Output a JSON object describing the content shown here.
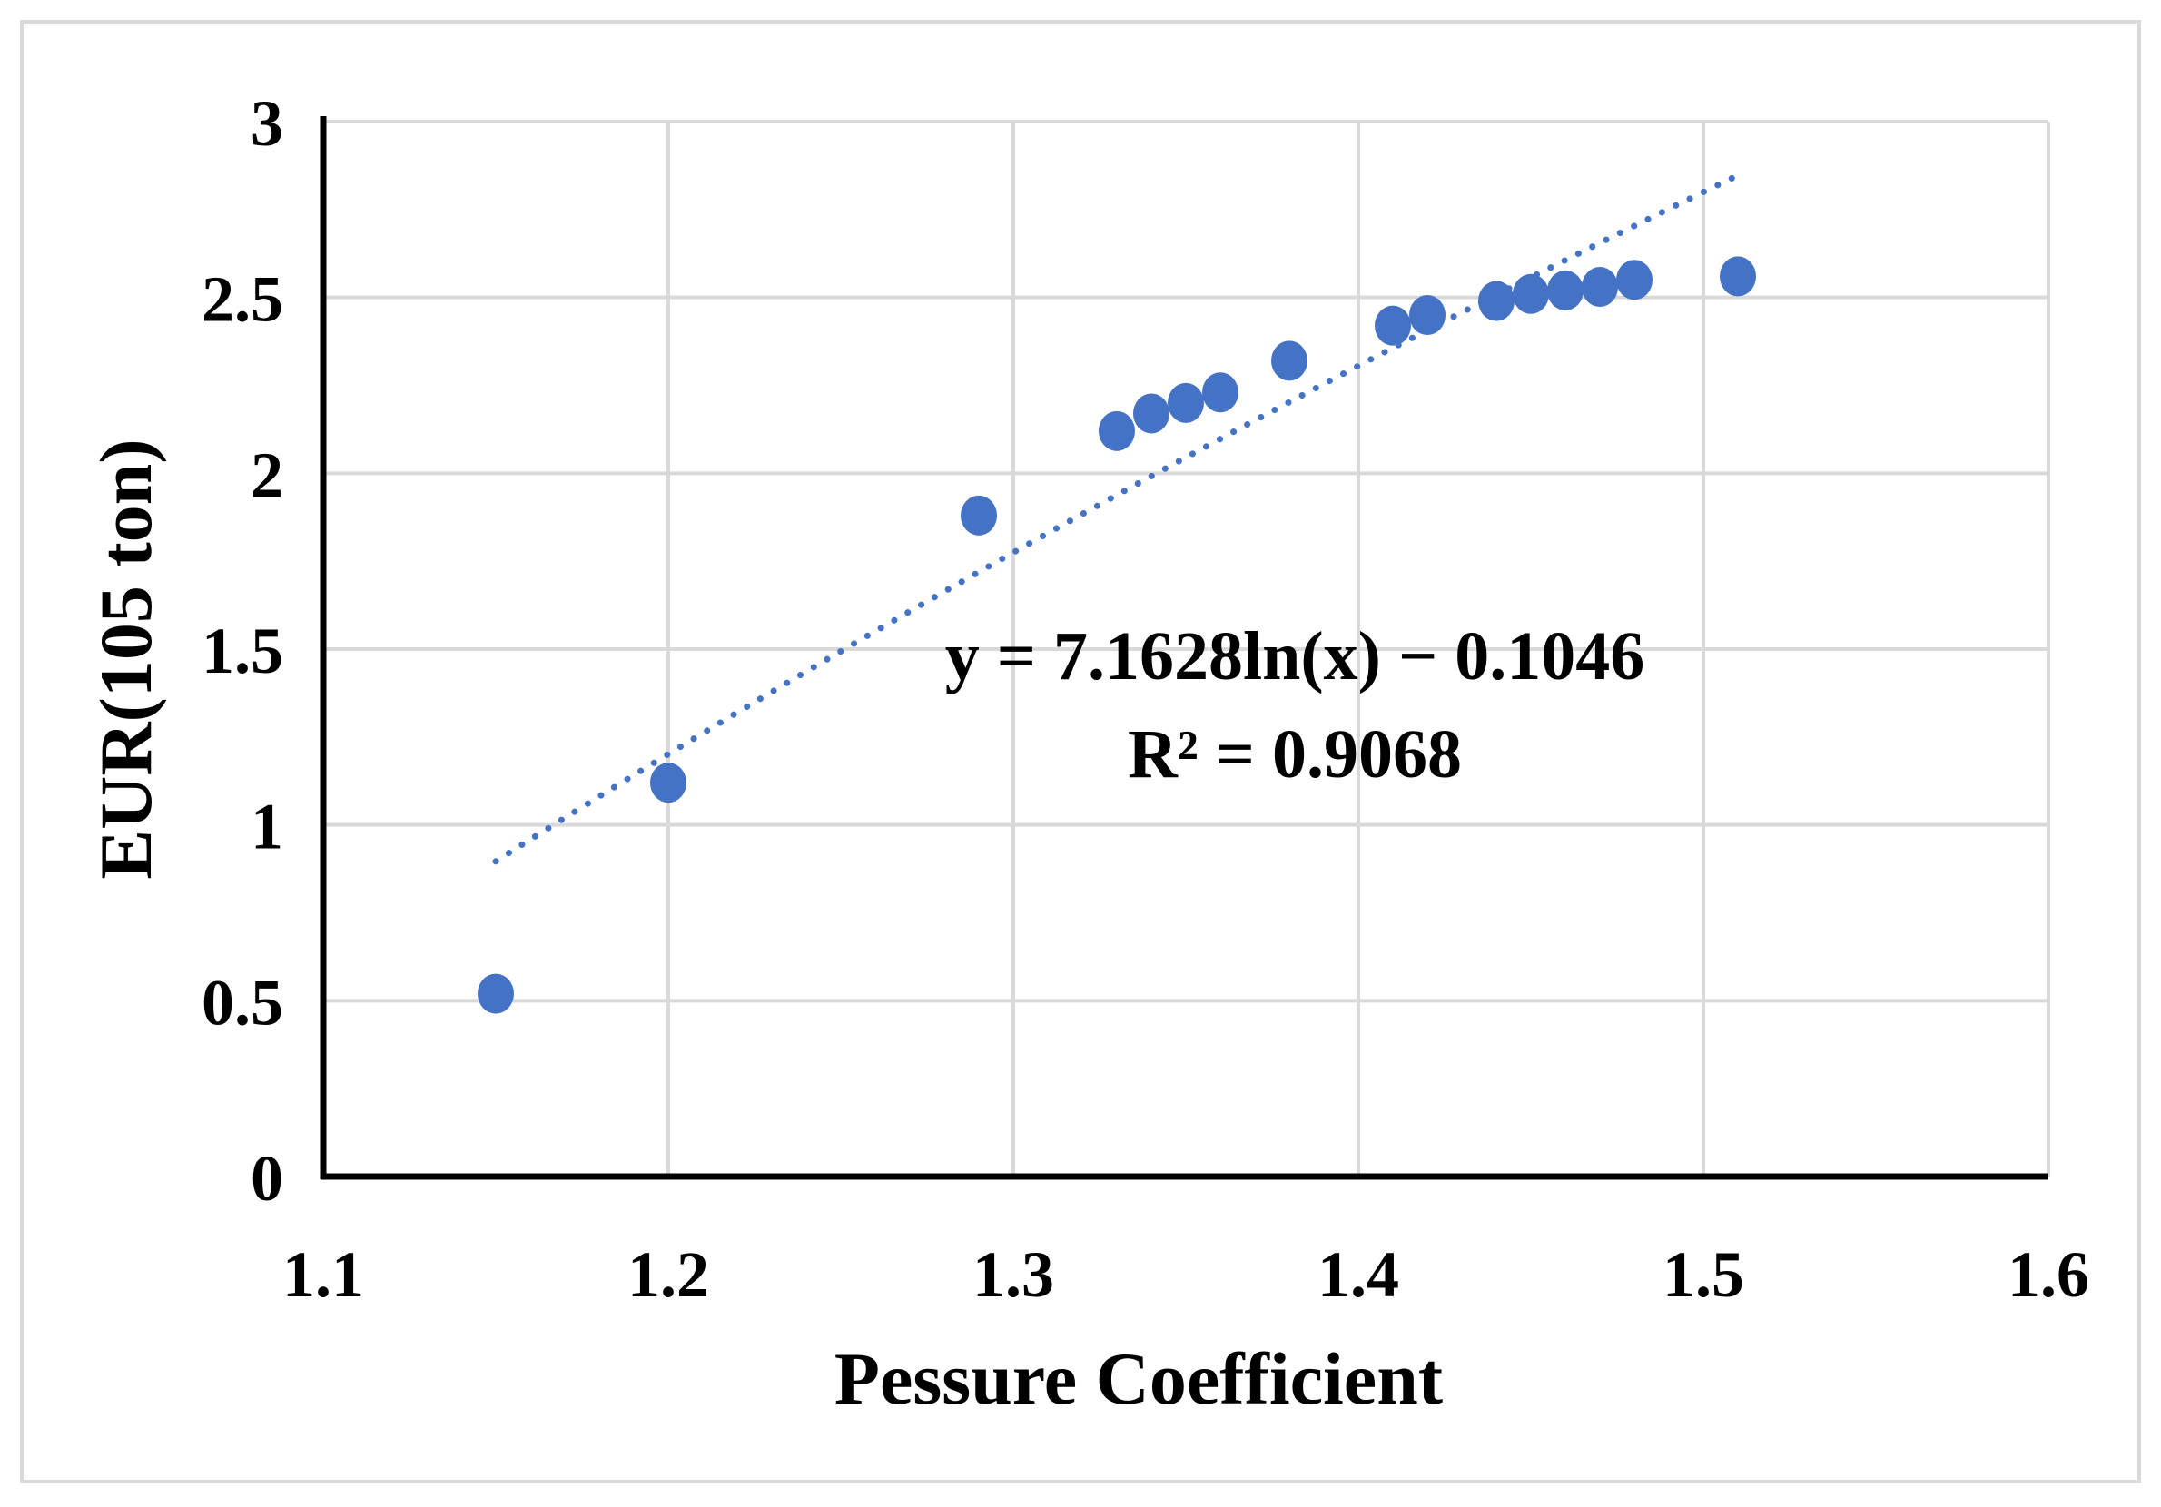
{
  "chart_data": {
    "type": "scatter",
    "title": "",
    "xlabel": "Pessure Coefficient",
    "ylabel": "EUR(105 ton)",
    "xlim": [
      1.1,
      1.6
    ],
    "ylim": [
      0,
      3
    ],
    "x_ticks": [
      "1.1",
      "1.2",
      "1.3",
      "1.4",
      "1.5",
      "1.6"
    ],
    "y_ticks": [
      "0",
      "0.5",
      "1",
      "1.5",
      "2",
      "2.5",
      "3"
    ],
    "grid": true,
    "series": [
      {
        "name": "EUR",
        "color": "#4472c4",
        "x": [
          1.15,
          1.2,
          1.29,
          1.33,
          1.34,
          1.35,
          1.36,
          1.38,
          1.41,
          1.42,
          1.44,
          1.45,
          1.46,
          1.47,
          1.48,
          1.51
        ],
        "y": [
          0.52,
          1.12,
          1.88,
          2.12,
          2.17,
          2.2,
          2.23,
          2.32,
          2.42,
          2.45,
          2.49,
          2.51,
          2.52,
          2.53,
          2.55,
          2.56
        ]
      }
    ],
    "trendline": {
      "type": "logarithmic",
      "a": 7.1628,
      "b": -0.1046,
      "x_range": [
        1.15,
        1.51
      ],
      "color": "#4472c4",
      "equation": "y = 7.1628ln(x) − 0.1046",
      "r_squared": "R² = 0.9068"
    }
  }
}
